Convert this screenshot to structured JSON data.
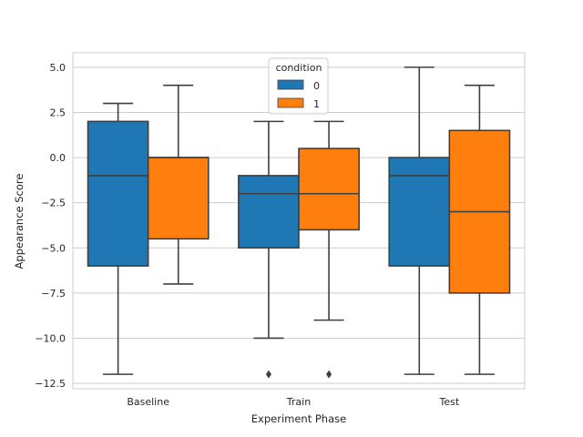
{
  "chart_data": {
    "type": "box",
    "xlabel": "Experiment Phase",
    "ylabel": "Appearance Score",
    "categories": [
      "Baseline",
      "Train",
      "Test"
    ],
    "ylim": [
      -12.8,
      5.8
    ],
    "yticks": [
      5.0,
      2.5,
      0.0,
      -2.5,
      -5.0,
      -7.5,
      -10.0,
      -12.5
    ],
    "ytick_labels": [
      "5.0",
      "2.5",
      "0.0",
      "−2.5",
      "−5.0",
      "−7.5",
      "−10.0",
      "−12.5"
    ],
    "grid": "horizontal",
    "legend": {
      "title": "condition",
      "placement": "upper center",
      "entries": [
        {
          "label": "0",
          "color": "#1f77b4"
        },
        {
          "label": "1",
          "color": "#ff7f0e"
        }
      ]
    },
    "series": [
      {
        "name": "0",
        "color": "#1f77b4",
        "boxes": [
          {
            "category": "Baseline",
            "whisker_low": -12.0,
            "q1": -6.0,
            "median": -1.0,
            "q3": 2.0,
            "whisker_high": 3.0,
            "outliers": []
          },
          {
            "category": "Train",
            "whisker_low": -10.0,
            "q1": -5.0,
            "median": -2.0,
            "q3": -1.0,
            "whisker_high": 2.0,
            "outliers": [
              -12.0
            ]
          },
          {
            "category": "Test",
            "whisker_low": -12.0,
            "q1": -6.0,
            "median": -1.0,
            "q3": 0.0,
            "whisker_high": 5.0,
            "outliers": []
          }
        ]
      },
      {
        "name": "1",
        "color": "#ff7f0e",
        "boxes": [
          {
            "category": "Baseline",
            "whisker_low": -7.0,
            "q1": -4.5,
            "median": 0.0,
            "q3": 0.0,
            "whisker_high": 4.0,
            "outliers": []
          },
          {
            "category": "Train",
            "whisker_low": -9.0,
            "q1": -4.0,
            "median": -2.0,
            "q3": 0.5,
            "whisker_high": 2.0,
            "outliers": [
              -12.0
            ]
          },
          {
            "category": "Test",
            "whisker_low": -12.0,
            "q1": -7.5,
            "median": -3.0,
            "q3": 1.5,
            "whisker_high": 4.0,
            "outliers": []
          }
        ]
      }
    ]
  }
}
